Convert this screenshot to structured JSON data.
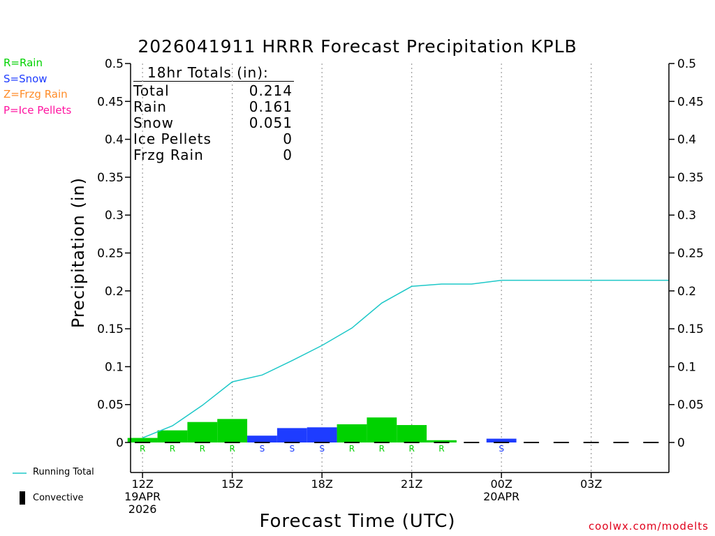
{
  "chart_data": {
    "type": "bar",
    "title": "2026041911 HRRR Forecast Precipitation KPLB",
    "xlabel": "Forecast Time (UTC)",
    "ylabel": "Precipitation (in)",
    "ylim": [
      0,
      0.5
    ],
    "xlim_hours": [
      11.6,
      29.6
    ],
    "y_ticks": [
      0,
      0.05,
      0.1,
      0.15,
      0.2,
      0.25,
      0.3,
      0.35,
      0.4,
      0.45,
      0.5
    ],
    "y_tick_labels": [
      "0",
      "0.05",
      "0.1",
      "0.15",
      "0.2",
      "0.25",
      "0.3",
      "0.35",
      "0.4",
      "0.45",
      "0.5"
    ],
    "x_ticks": [
      {
        "hour": 12,
        "lines": [
          "12Z",
          "19APR",
          "2026"
        ]
      },
      {
        "hour": 15,
        "lines": [
          "15Z"
        ]
      },
      {
        "hour": 18,
        "lines": [
          "18Z"
        ]
      },
      {
        "hour": 21,
        "lines": [
          "21Z"
        ]
      },
      {
        "hour": 24,
        "lines": [
          "00Z",
          "20APR"
        ]
      },
      {
        "hour": 27,
        "lines": [
          "03Z"
        ]
      }
    ],
    "hourly": [
      {
        "hour": 12,
        "value": 0.006,
        "type": "R"
      },
      {
        "hour": 13,
        "value": 0.016,
        "type": "R"
      },
      {
        "hour": 14,
        "value": 0.027,
        "type": "R"
      },
      {
        "hour": 15,
        "value": 0.031,
        "type": "R"
      },
      {
        "hour": 16,
        "value": 0.009,
        "type": "S"
      },
      {
        "hour": 17,
        "value": 0.019,
        "type": "S"
      },
      {
        "hour": 18,
        "value": 0.02,
        "type": "S"
      },
      {
        "hour": 19,
        "value": 0.024,
        "type": "R"
      },
      {
        "hour": 20,
        "value": 0.033,
        "type": "R"
      },
      {
        "hour": 21,
        "value": 0.023,
        "type": "R"
      },
      {
        "hour": 22,
        "value": 0.003,
        "type": "R"
      },
      {
        "hour": 23,
        "value": 0.0,
        "type": ""
      },
      {
        "hour": 24,
        "value": 0.005,
        "type": "S"
      },
      {
        "hour": 25,
        "value": 0.0,
        "type": ""
      },
      {
        "hour": 26,
        "value": 0.0,
        "type": ""
      },
      {
        "hour": 27,
        "value": 0.0,
        "type": ""
      },
      {
        "hour": 28,
        "value": 0.0,
        "type": ""
      },
      {
        "hour": 29,
        "value": 0.0,
        "type": ""
      }
    ],
    "running_total": [
      [
        12,
        0.006
      ],
      [
        13,
        0.022
      ],
      [
        14,
        0.049
      ],
      [
        15,
        0.08
      ],
      [
        16,
        0.089
      ],
      [
        17,
        0.108
      ],
      [
        18,
        0.128
      ],
      [
        19,
        0.151
      ],
      [
        20,
        0.184
      ],
      [
        21,
        0.206
      ],
      [
        22,
        0.209
      ],
      [
        23,
        0.209
      ],
      [
        24,
        0.214
      ],
      [
        25,
        0.214
      ],
      [
        26,
        0.214
      ],
      [
        27,
        0.214
      ],
      [
        28,
        0.214
      ],
      [
        29,
        0.214
      ],
      [
        29.6,
        0.214
      ]
    ],
    "colors": {
      "rain": "#00d200",
      "snow": "#1e3cff",
      "frzg_rain": "#ff8c28",
      "ice_pellets": "#ff14a0",
      "running_total": "#1ec8c8",
      "convective": "#000000",
      "grid": "#9a9a9a"
    },
    "legend": {
      "rain": "R=Rain",
      "snow": "S=Snow",
      "frzg_rain": "Z=Frzg Rain",
      "ice_pellets": "P=Ice Pellets",
      "running_total": "Running Total",
      "convective": "Convective"
    },
    "totals_box": {
      "header": "18hr Totals (in):",
      "rows": [
        {
          "label": "Total",
          "value": "0.214"
        },
        {
          "label": "Rain",
          "value": "0.161"
        },
        {
          "label": "Snow",
          "value": "0.051"
        },
        {
          "label": "Ice Pellets",
          "value": "0"
        },
        {
          "label": "Frzg Rain",
          "value": "0"
        }
      ]
    }
  },
  "credit": "coolwx.com/modelts"
}
